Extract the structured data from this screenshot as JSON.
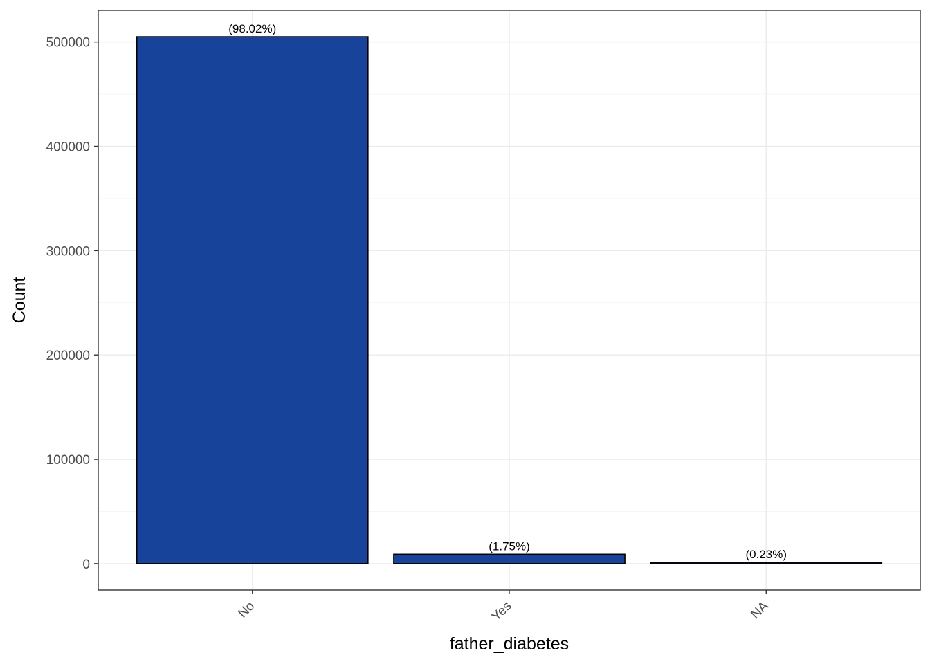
{
  "chart_data": {
    "type": "bar",
    "categories": [
      "No",
      "Yes",
      "NA"
    ],
    "values": [
      505000,
      9000,
      1190
    ],
    "labels": [
      "(98.02%)",
      "(1.75%)",
      "(0.23%)"
    ],
    "title": "",
    "xlabel": "father_diabetes",
    "ylabel": "Count",
    "ylim": [
      -25250,
      530250
    ],
    "yticks": [
      0,
      100000,
      200000,
      300000,
      400000,
      500000
    ],
    "ytick_labels": [
      "0",
      "100000",
      "200000",
      "300000",
      "400000",
      "500000"
    ],
    "grid": true,
    "legend": "none",
    "bar_color": "#17449a",
    "bar_edge_color": "#000000"
  }
}
